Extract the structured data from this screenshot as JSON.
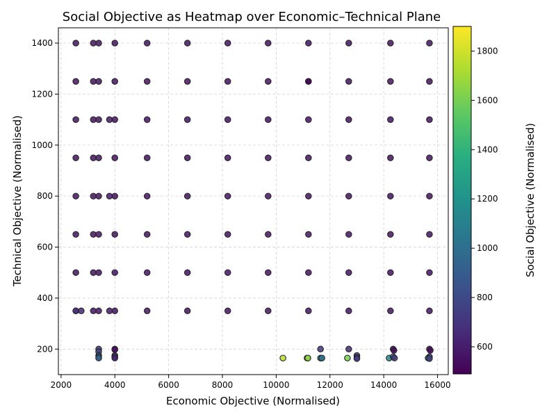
{
  "chart_data": {
    "type": "scatter",
    "title": "Social Objective as Heatmap over Economic–Technical Plane",
    "xlabel": "Economic Objective (Normalised)",
    "ylabel": "Technical Objective (Normalised)",
    "colorbar_label": "Social Objective (Normalised)",
    "xlim": [
      1900,
      16400
    ],
    "ylim": [
      100,
      1460
    ],
    "xticks": [
      2000,
      4000,
      6000,
      8000,
      10000,
      12000,
      14000,
      16000
    ],
    "yticks": [
      200,
      400,
      600,
      800,
      1000,
      1200,
      1400
    ],
    "color_range": [
      490,
      1900
    ],
    "colorbar_ticks": [
      600,
      800,
      1000,
      1200,
      1400,
      1600,
      1800
    ],
    "colormap": "viridis",
    "grid": true,
    "grid_columns_x": [
      2550,
      3200,
      3400,
      4000,
      5200,
      6700,
      8200,
      9700,
      11200,
      12700,
      14250,
      15700
    ],
    "grid_rows_y": [
      350,
      500,
      650,
      800,
      950,
      1100,
      1250,
      1400
    ],
    "grid_color_value": 560,
    "extra_points": [
      {
        "x": 2550,
        "y": 350,
        "c": 700
      },
      {
        "x": 2750,
        "y": 350,
        "c": 640
      },
      {
        "x": 3800,
        "y": 350,
        "c": 580
      },
      {
        "x": 3800,
        "y": 800,
        "c": 580
      },
      {
        "x": 3800,
        "y": 1100,
        "c": 580
      },
      {
        "x": 11200,
        "y": 1250,
        "c": 500
      },
      {
        "x": 3400,
        "y": 200,
        "c": 700
      },
      {
        "x": 3400,
        "y": 190,
        "c": 800
      },
      {
        "x": 3400,
        "y": 175,
        "c": 950
      },
      {
        "x": 3400,
        "y": 170,
        "c": 1050
      },
      {
        "x": 3400,
        "y": 165,
        "c": 900
      },
      {
        "x": 4000,
        "y": 200,
        "c": 560
      },
      {
        "x": 4000,
        "y": 198,
        "c": 540
      },
      {
        "x": 4000,
        "y": 175,
        "c": 700
      },
      {
        "x": 4000,
        "y": 170,
        "c": 650
      },
      {
        "x": 4000,
        "y": 165,
        "c": 620
      },
      {
        "x": 10250,
        "y": 165,
        "c": 1750
      },
      {
        "x": 11150,
        "y": 165,
        "c": 1700
      },
      {
        "x": 11180,
        "y": 165,
        "c": 1650
      },
      {
        "x": 11650,
        "y": 200,
        "c": 700
      },
      {
        "x": 11650,
        "y": 165,
        "c": 1100
      },
      {
        "x": 11700,
        "y": 165,
        "c": 1000
      },
      {
        "x": 12650,
        "y": 165,
        "c": 1600
      },
      {
        "x": 12700,
        "y": 200,
        "c": 650
      },
      {
        "x": 13000,
        "y": 175,
        "c": 800
      },
      {
        "x": 13000,
        "y": 168,
        "c": 750
      },
      {
        "x": 13000,
        "y": 163,
        "c": 720
      },
      {
        "x": 14200,
        "y": 165,
        "c": 1150
      },
      {
        "x": 14350,
        "y": 200,
        "c": 560
      },
      {
        "x": 14380,
        "y": 195,
        "c": 540
      },
      {
        "x": 14350,
        "y": 170,
        "c": 850
      },
      {
        "x": 14400,
        "y": 165,
        "c": 720
      },
      {
        "x": 15700,
        "y": 200,
        "c": 560
      },
      {
        "x": 15730,
        "y": 195,
        "c": 540
      },
      {
        "x": 15700,
        "y": 170,
        "c": 850
      },
      {
        "x": 15650,
        "y": 165,
        "c": 1000
      },
      {
        "x": 15700,
        "y": 163,
        "c": 760
      }
    ]
  }
}
